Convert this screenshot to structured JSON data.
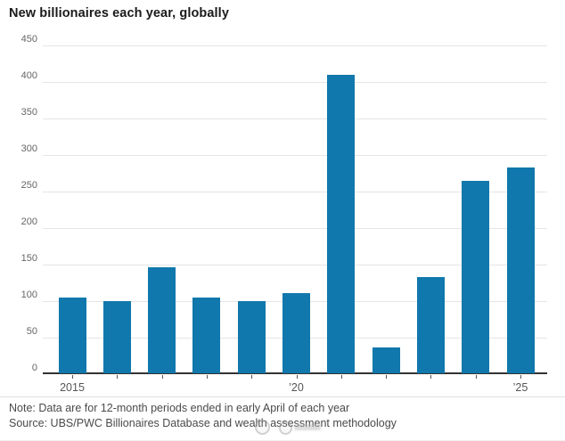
{
  "title": "New billionaires each year, globally",
  "chart_data": {
    "type": "bar",
    "title": "New billionaires each year, globally",
    "categories": [
      "2015",
      "2016",
      "2017",
      "2018",
      "2019",
      "2020",
      "2021",
      "2022",
      "2023",
      "2024",
      "2025"
    ],
    "values": [
      105,
      99,
      146,
      104,
      100,
      110,
      410,
      36,
      133,
      264,
      283
    ],
    "xlabel": "",
    "ylabel": "",
    "ylim": [
      0,
      450
    ],
    "y_ticks": [
      0,
      50,
      100,
      150,
      200,
      250,
      300,
      350,
      400,
      450
    ],
    "x_tick_labels": [
      {
        "index": 0,
        "label": "2015"
      },
      {
        "index": 5,
        "label": "’20"
      },
      {
        "index": 10,
        "label": "’25"
      }
    ],
    "grid": "horizontal",
    "legend": "none",
    "bar_color": "#1078ac"
  },
  "footer": {
    "note": "Note: Data are for 12-month periods ended in early April of each year",
    "source": "Source: UBS/PWC Billionaires Database and wealth assessment methodology"
  },
  "colors": {
    "bar": "#1078ac",
    "gridline": "#e5e5e5",
    "axis_line": "#333333",
    "tick_text": "#666666",
    "footer_text": "#4a4a4a"
  }
}
